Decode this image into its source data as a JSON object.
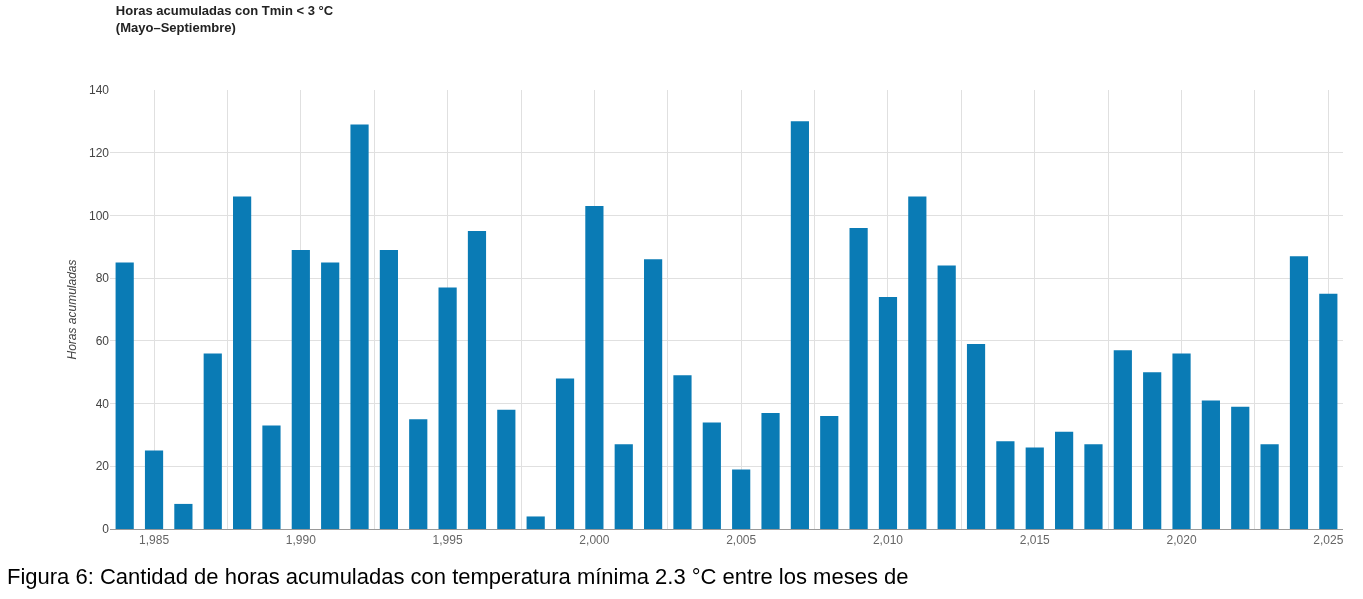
{
  "chart_data": {
    "type": "bar",
    "title": "Horas acumuladas con Tmin < 3 °C\n(Mayo–Septiembre)",
    "ylabel": "Horas acumuladas",
    "x": [
      1984,
      1985,
      1986,
      1987,
      1988,
      1989,
      1990,
      1991,
      1992,
      1993,
      1994,
      1995,
      1996,
      1997,
      1998,
      1999,
      2000,
      2001,
      2002,
      2003,
      2004,
      2005,
      2006,
      2007,
      2008,
      2009,
      2010,
      2011,
      2012,
      2013,
      2014,
      2015,
      2016,
      2017,
      2018,
      2019,
      2020,
      2021,
      2022,
      2023,
      2024,
      2025
    ],
    "values": [
      85,
      25,
      8,
      56,
      106,
      33,
      89,
      85,
      129,
      89,
      35,
      77,
      95,
      38,
      4,
      48,
      103,
      27,
      86,
      49,
      34,
      19,
      37,
      130,
      36,
      96,
      74,
      106,
      84,
      59,
      28,
      26,
      31,
      27,
      57,
      50,
      56,
      41,
      39,
      27,
      87,
      75
    ],
    "color": "#0a7bb5",
    "xlim": [
      1983.5,
      2025.5
    ],
    "xticks": [
      {
        "value": 1985,
        "label": "1,985"
      },
      {
        "value": 1987.5,
        "label": null
      },
      {
        "value": 1990,
        "label": "1,990"
      },
      {
        "value": 1992.5,
        "label": null
      },
      {
        "value": 1995,
        "label": "1,995"
      },
      {
        "value": 1997.5,
        "label": null
      },
      {
        "value": 2000,
        "label": "2,000"
      },
      {
        "value": 2002.5,
        "label": null
      },
      {
        "value": 2005,
        "label": "2,005"
      },
      {
        "value": 2007.5,
        "label": null
      },
      {
        "value": 2010,
        "label": "2,010"
      },
      {
        "value": 2012.5,
        "label": null
      },
      {
        "value": 2015,
        "label": "2,015"
      },
      {
        "value": 2017.5,
        "label": null
      },
      {
        "value": 2020,
        "label": "2,020"
      },
      {
        "value": 2022.5,
        "label": null
      },
      {
        "value": 2025,
        "label": "2,025"
      }
    ],
    "ylim": [
      0,
      140
    ],
    "yticks": [
      0,
      20,
      40,
      60,
      80,
      100,
      120,
      140
    ],
    "grid": true,
    "annotations": [
      "Figura 6: Cantidad de horas acumuladas con temperatura mínima 2.3 °C entre los meses de"
    ]
  }
}
